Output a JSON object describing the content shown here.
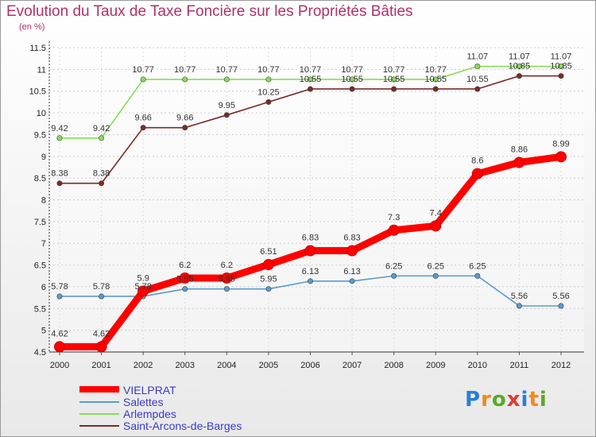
{
  "chart_data": {
    "type": "line",
    "title": "Evolution du Taux de Taxe Foncière sur les Propriétés Bâties",
    "ylabel": "(en %)",
    "categories": [
      "2000",
      "2001",
      "2002",
      "2003",
      "2004",
      "2005",
      "2006",
      "2007",
      "2008",
      "2009",
      "2010",
      "2011",
      "2012"
    ],
    "ylim": [
      4.5,
      11.5
    ],
    "yticks": [
      "4.5",
      "5",
      "5.5",
      "6",
      "6.5",
      "7",
      "7.5",
      "8",
      "8.5",
      "9",
      "9.5",
      "10",
      "10.5",
      "11",
      "11.5"
    ],
    "series": [
      {
        "name": "VIELPRAT",
        "color": "#ff0000",
        "values": [
          4.62,
          4.62,
          5.9,
          6.2,
          6.2,
          6.51,
          6.83,
          6.83,
          7.3,
          7.4,
          8.6,
          8.86,
          8.99
        ],
        "labels": [
          "4.62",
          "4.62",
          "5.9",
          "6.2",
          "6.2",
          "6.51",
          "6.83",
          "6.83",
          "7.3",
          "7.4",
          "8.6",
          "8.86",
          "8.99"
        ]
      },
      {
        "name": "Salettes",
        "color": "#5b9bd0",
        "values": [
          5.78,
          5.78,
          5.78,
          5.95,
          5.95,
          5.95,
          6.13,
          6.13,
          6.25,
          6.25,
          6.25,
          5.56,
          5.56
        ],
        "labels": [
          "5.78",
          "5.78",
          "5.78",
          "5.95",
          "5.95",
          "5.95",
          "6.13",
          "6.13",
          "6.25",
          "6.25",
          "6.25",
          "5.56",
          "5.56"
        ]
      },
      {
        "name": "Arlempdes",
        "color": "#88dd55",
        "values": [
          9.42,
          9.42,
          10.77,
          10.77,
          10.77,
          10.77,
          10.77,
          10.77,
          10.77,
          10.77,
          11.07,
          11.07,
          11.07
        ],
        "labels": [
          "9.42",
          "9.42",
          "10.77",
          "10.77",
          "10.77",
          "10.77",
          "10.77",
          "10.77",
          "10.77",
          "10.77",
          "11.07",
          "11.07",
          "11.07"
        ]
      },
      {
        "name": "Saint-Arcons-de-Barges",
        "color": "#7a2a2a",
        "values": [
          8.38,
          8.38,
          9.66,
          9.66,
          9.95,
          10.25,
          10.55,
          10.55,
          10.55,
          10.55,
          10.55,
          10.85,
          10.85
        ],
        "labels": [
          "8.38",
          "8.38",
          "9.66",
          "9.66",
          "9.95",
          "10.25",
          "10.55",
          "10.55",
          "10.55",
          "10.55",
          "10.55",
          "10.85",
          "10.85"
        ]
      }
    ]
  },
  "logo": {
    "text": "Proxiti",
    "letters": [
      "P",
      "r",
      "o",
      "x",
      "i",
      "t",
      "i"
    ],
    "colors": [
      "#2a7fd4",
      "#f08a1c",
      "#5aaa28",
      "#e53935",
      "#2a7fd4",
      "#f08a1c",
      "#5aaa28"
    ]
  }
}
